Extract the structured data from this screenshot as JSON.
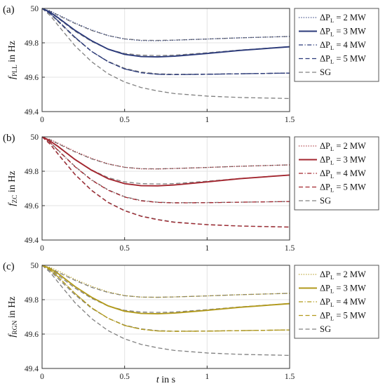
{
  "chart_data": [
    {
      "type": "line",
      "panel_label": "(a)",
      "ylabel_main": "f",
      "ylabel_sub": "PLL",
      "ylabel_rest": " in Hz",
      "xlabel": "",
      "xlim": [
        0,
        1.5
      ],
      "ylim": [
        49.4,
        50
      ],
      "x_ticks": [
        "0",
        "0.5",
        "1",
        "1.5"
      ],
      "y_ticks": [
        "49.4",
        "49.6",
        "49.8",
        "50"
      ],
      "grid": true,
      "legend_position": "right",
      "legend": [
        {
          "prefix": "ΔP",
          "sub": "L",
          "suffix": " = 2 MW",
          "style": "dotted",
          "color": "#2b3a7a"
        },
        {
          "prefix": "ΔP",
          "sub": "L",
          "suffix": " = 3 MW",
          "style": "solid",
          "color": "#2b3a7a"
        },
        {
          "prefix": "ΔP",
          "sub": "L",
          "suffix": " = 4 MW",
          "style": "dashdot",
          "color": "#2b3a7a"
        },
        {
          "prefix": "ΔP",
          "sub": "L",
          "suffix": " = 5 MW",
          "style": "dashed",
          "color": "#2b3a7a"
        },
        {
          "prefix": "SG",
          "sub": "",
          "suffix": "",
          "style": "dashed",
          "color": "#808080"
        }
      ],
      "x": [
        0,
        0.05,
        0.1,
        0.2,
        0.3,
        0.4,
        0.5,
        0.6,
        0.7,
        0.8,
        1.0,
        1.2,
        1.5
      ],
      "series": [
        {
          "name": "ΔP_L = 2 MW",
          "style": "dotted",
          "color": "#2b3a7a",
          "values": [
            50,
            49.985,
            49.962,
            49.915,
            49.875,
            49.842,
            49.822,
            49.813,
            49.812,
            49.815,
            49.822,
            49.829,
            49.837
          ]
        },
        {
          "name": "ΔP_L = 3 MW",
          "style": "solid",
          "color": "#2b3a7a",
          "values": [
            50,
            49.977,
            49.944,
            49.872,
            49.812,
            49.763,
            49.733,
            49.72,
            49.718,
            49.722,
            49.738,
            49.756,
            49.777
          ]
        },
        {
          "name": "ΔP_L = 4 MW",
          "style": "dashdot",
          "color": "#2b3a7a",
          "values": [
            50,
            49.97,
            49.925,
            49.832,
            49.75,
            49.69,
            49.648,
            49.626,
            49.617,
            49.615,
            49.617,
            49.62,
            49.624
          ]
        },
        {
          "name": "ΔP_L = 5 MW",
          "style": "dashed",
          "color": "#2b3a7a",
          "values": [
            50,
            49.97,
            49.925,
            49.832,
            49.75,
            49.69,
            49.648,
            49.626,
            49.617,
            49.615,
            49.617,
            49.62,
            49.624
          ]
        },
        {
          "name": "SG 2 MW",
          "style": "dashed",
          "color": "#808080",
          "values": [
            50,
            49.983,
            49.958,
            49.912,
            49.872,
            49.842,
            49.823,
            49.815,
            49.814,
            49.816,
            49.822,
            49.829,
            49.837
          ]
        },
        {
          "name": "SG 3 MW",
          "style": "dashed",
          "color": "#808080",
          "values": [
            50,
            49.975,
            49.94,
            49.867,
            49.808,
            49.763,
            49.738,
            49.728,
            49.726,
            49.728,
            49.742,
            49.758,
            49.778
          ]
        },
        {
          "name": "SG 4 MW",
          "style": "dashed",
          "color": "#808080",
          "values": [
            50,
            49.967,
            49.92,
            49.828,
            49.75,
            49.692,
            49.652,
            49.63,
            49.62,
            49.617,
            49.618,
            49.62,
            49.624
          ]
        },
        {
          "name": "SG 5 MW",
          "style": "dashed",
          "color": "#808080",
          "values": [
            50,
            49.958,
            49.898,
            49.782,
            49.69,
            49.62,
            49.572,
            49.54,
            49.52,
            49.505,
            49.49,
            49.482,
            49.476
          ]
        }
      ]
    },
    {
      "type": "line",
      "panel_label": "(b)",
      "ylabel_main": "f",
      "ylabel_sub": "ZC",
      "ylabel_rest": " in Hz",
      "xlabel": "",
      "xlim": [
        0,
        1.5
      ],
      "ylim": [
        49.4,
        50
      ],
      "x_ticks": [
        "0",
        "0.5",
        "1",
        "1.5"
      ],
      "y_ticks": [
        "49.4",
        "49.6",
        "49.8",
        "50"
      ],
      "grid": true,
      "legend_position": "right",
      "legend": [
        {
          "prefix": "ΔP",
          "sub": "L",
          "suffix": " = 2 MW",
          "style": "dotted",
          "color": "#a3262f"
        },
        {
          "prefix": "ΔP",
          "sub": "L",
          "suffix": " = 3 MW",
          "style": "solid",
          "color": "#a3262f"
        },
        {
          "prefix": "ΔP",
          "sub": "L",
          "suffix": " = 4 MW",
          "style": "dashdot",
          "color": "#a3262f"
        },
        {
          "prefix": "ΔP",
          "sub": "L",
          "suffix": " = 5 MW",
          "style": "dashed",
          "color": "#a3262f"
        },
        {
          "prefix": "SG",
          "sub": "",
          "suffix": "",
          "style": "dashed",
          "color": "#808080"
        }
      ],
      "x": [
        0,
        0.05,
        0.1,
        0.2,
        0.3,
        0.4,
        0.5,
        0.6,
        0.7,
        0.8,
        1.0,
        1.2,
        1.5
      ],
      "series": [
        {
          "name": "ΔP_L = 2 MW",
          "style": "dotted",
          "color": "#a3262f",
          "values": [
            50,
            49.984,
            49.962,
            49.915,
            49.875,
            49.843,
            49.823,
            49.814,
            49.813,
            49.816,
            49.822,
            49.829,
            49.837
          ]
        },
        {
          "name": "ΔP_L = 3 MW",
          "style": "solid",
          "color": "#a3262f",
          "values": [
            50,
            49.975,
            49.942,
            49.868,
            49.806,
            49.757,
            49.728,
            49.716,
            49.715,
            49.72,
            49.738,
            49.757,
            49.778
          ]
        },
        {
          "name": "ΔP_L = 4 MW",
          "style": "dashdot",
          "color": "#a3262f",
          "values": [
            50,
            49.966,
            49.918,
            49.826,
            49.748,
            49.69,
            49.65,
            49.628,
            49.619,
            49.616,
            49.617,
            49.62,
            49.624
          ]
        },
        {
          "name": "ΔP_L = 5 MW",
          "style": "dashed",
          "color": "#a3262f",
          "values": [
            50,
            49.956,
            49.895,
            49.78,
            49.688,
            49.618,
            49.57,
            49.538,
            49.518,
            49.503,
            49.489,
            49.481,
            49.475
          ]
        },
        {
          "name": "SG 2 MW",
          "style": "dashed",
          "color": "#808080",
          "values": [
            50,
            49.983,
            49.958,
            49.912,
            49.872,
            49.842,
            49.823,
            49.815,
            49.814,
            49.816,
            49.822,
            49.829,
            49.837
          ]
        },
        {
          "name": "SG 3 MW",
          "style": "dashed",
          "color": "#808080",
          "values": [
            50,
            49.975,
            49.94,
            49.867,
            49.808,
            49.763,
            49.738,
            49.728,
            49.726,
            49.728,
            49.742,
            49.758,
            49.778
          ]
        },
        {
          "name": "SG 4 MW",
          "style": "dashed",
          "color": "#808080",
          "values": [
            50,
            49.967,
            49.92,
            49.828,
            49.75,
            49.692,
            49.652,
            49.63,
            49.62,
            49.617,
            49.618,
            49.62,
            49.624
          ]
        },
        {
          "name": "SG 5 MW",
          "style": "dashed",
          "color": "#808080",
          "values": [
            50,
            49.958,
            49.898,
            49.782,
            49.69,
            49.62,
            49.572,
            49.54,
            49.52,
            49.505,
            49.49,
            49.482,
            49.476
          ]
        }
      ]
    },
    {
      "type": "line",
      "panel_label": "(c)",
      "ylabel_main": "f",
      "ylabel_sub": "RGN",
      "ylabel_rest": " in Hz",
      "xlabel": "t in s",
      "xlim": [
        0,
        1.5
      ],
      "ylim": [
        49.4,
        50
      ],
      "x_ticks": [
        "0",
        "0.5",
        "1",
        "1.5"
      ],
      "y_ticks": [
        "49.4",
        "49.6",
        "49.8",
        "50"
      ],
      "grid": true,
      "legend_position": "right",
      "legend": [
        {
          "prefix": "ΔP",
          "sub": "L",
          "suffix": " = 2 MW",
          "style": "dotted",
          "color": "#b29a1c"
        },
        {
          "prefix": "ΔP",
          "sub": "L",
          "suffix": " = 3 MW",
          "style": "solid",
          "color": "#b29a1c"
        },
        {
          "prefix": "ΔP",
          "sub": "L",
          "suffix": " = 4 MW",
          "style": "dashdot",
          "color": "#b29a1c"
        },
        {
          "prefix": "ΔP",
          "sub": "L",
          "suffix": " = 5 MW",
          "style": "dashed",
          "color": "#b29a1c"
        },
        {
          "prefix": "SG",
          "sub": "",
          "suffix": "",
          "style": "dashed",
          "color": "#808080"
        }
      ],
      "x": [
        0,
        0.05,
        0.1,
        0.2,
        0.3,
        0.4,
        0.5,
        0.6,
        0.7,
        0.8,
        1.0,
        1.2,
        1.5
      ],
      "series": [
        {
          "name": "ΔP_L = 2 MW",
          "style": "dotted",
          "color": "#b29a1c",
          "values": [
            50,
            49.987,
            49.966,
            49.918,
            49.878,
            49.845,
            49.824,
            49.815,
            49.814,
            49.816,
            49.822,
            49.829,
            49.837
          ]
        },
        {
          "name": "ΔP_L = 3 MW",
          "style": "solid",
          "color": "#b29a1c",
          "values": [
            50,
            49.98,
            49.95,
            49.876,
            49.814,
            49.764,
            49.733,
            49.72,
            49.718,
            49.722,
            49.738,
            49.756,
            49.777
          ]
        },
        {
          "name": "ΔP_L = 4 MW",
          "style": "dashdot",
          "color": "#b29a1c",
          "values": [
            50,
            49.972,
            49.93,
            49.836,
            49.753,
            49.692,
            49.65,
            49.628,
            49.618,
            49.616,
            49.617,
            49.62,
            49.624
          ]
        },
        {
          "name": "ΔP_L = 5 MW",
          "style": "dashed",
          "color": "#b29a1c",
          "values": [
            50,
            49.972,
            49.93,
            49.836,
            49.753,
            49.692,
            49.65,
            49.628,
            49.618,
            49.616,
            49.617,
            49.62,
            49.624
          ]
        },
        {
          "name": "SG 2 MW",
          "style": "dashed",
          "color": "#808080",
          "values": [
            50,
            49.983,
            49.958,
            49.912,
            49.872,
            49.842,
            49.823,
            49.815,
            49.814,
            49.816,
            49.822,
            49.829,
            49.837
          ]
        },
        {
          "name": "SG 3 MW",
          "style": "dashed",
          "color": "#808080",
          "values": [
            50,
            49.975,
            49.94,
            49.867,
            49.808,
            49.763,
            49.738,
            49.728,
            49.726,
            49.728,
            49.742,
            49.758,
            49.778
          ]
        },
        {
          "name": "SG 4 MW",
          "style": "dashed",
          "color": "#808080",
          "values": [
            50,
            49.967,
            49.92,
            49.828,
            49.75,
            49.692,
            49.652,
            49.63,
            49.62,
            49.617,
            49.618,
            49.62,
            49.624
          ]
        },
        {
          "name": "SG 5 MW",
          "style": "dashed",
          "color": "#808080",
          "values": [
            50,
            49.958,
            49.898,
            49.782,
            49.69,
            49.62,
            49.572,
            49.54,
            49.52,
            49.505,
            49.49,
            49.482,
            49.476
          ]
        }
      ]
    }
  ]
}
